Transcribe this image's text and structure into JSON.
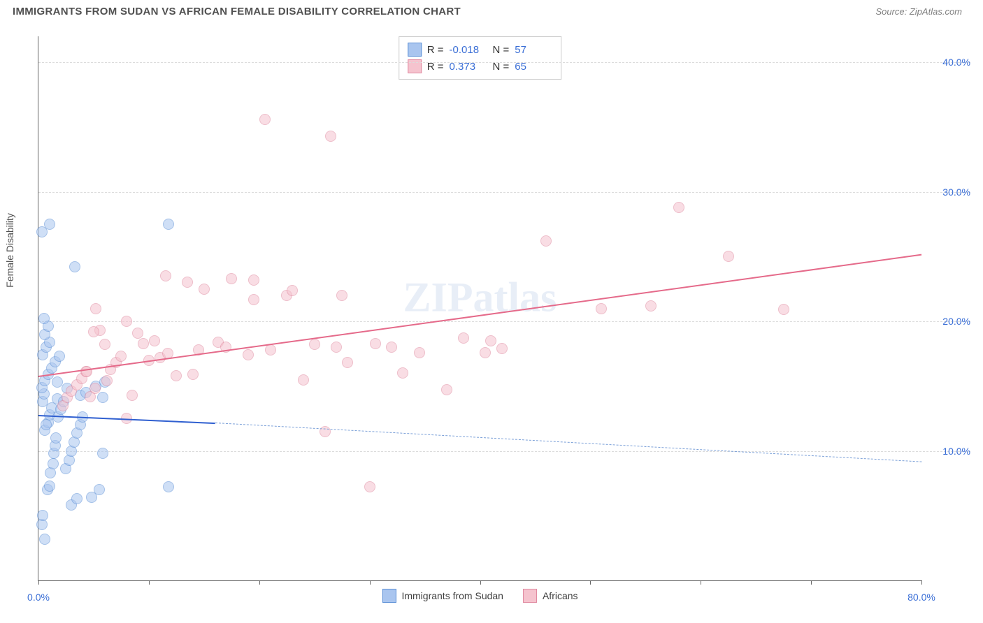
{
  "title": "IMMIGRANTS FROM SUDAN VS AFRICAN FEMALE DISABILITY CORRELATION CHART",
  "source_label": "Source: ZipAtlas.com",
  "ylabel": "Female Disability",
  "watermark": "ZIPatlas",
  "chart": {
    "type": "scatter",
    "xlim": [
      0,
      80
    ],
    "ylim": [
      0,
      42
    ],
    "xtick_positions": [
      0,
      10,
      20,
      30,
      40,
      50,
      60,
      70,
      80
    ],
    "ytick_positions": [
      10,
      20,
      30,
      40
    ],
    "x_axis_labels": [
      {
        "pos": 0,
        "text": "0.0%"
      },
      {
        "pos": 80,
        "text": "80.0%"
      }
    ],
    "y_axis_labels": [
      {
        "pos": 10,
        "text": "10.0%"
      },
      {
        "pos": 20,
        "text": "20.0%"
      },
      {
        "pos": 30,
        "text": "30.0%"
      },
      {
        "pos": 40,
        "text": "40.0%"
      }
    ],
    "background_color": "#ffffff",
    "grid_color": "#dcdcdc",
    "point_radius": 8,
    "point_opacity": 0.55,
    "series": [
      {
        "name": "Immigrants from Sudan",
        "fill": "#a9c5ef",
        "stroke": "#5b8fd6",
        "R": "-0.018",
        "N": "57",
        "trend": {
          "x1": 0,
          "y1": 12.8,
          "x2": 16,
          "y2": 12.2,
          "stroke": "#2f5fd0",
          "width": 2.5,
          "dash": "none"
        },
        "trend_ext": {
          "x1": 16,
          "y1": 12.2,
          "x2": 80,
          "y2": 9.2,
          "stroke": "#7ba0d8",
          "width": 1.5,
          "dash": "5,5"
        },
        "points": [
          [
            0.3,
            4.3
          ],
          [
            0.4,
            5.0
          ],
          [
            0.6,
            3.2
          ],
          [
            0.8,
            7.0
          ],
          [
            1.0,
            7.3
          ],
          [
            1.1,
            8.3
          ],
          [
            1.3,
            9.0
          ],
          [
            1.4,
            9.8
          ],
          [
            1.5,
            10.4
          ],
          [
            1.6,
            11.0
          ],
          [
            0.6,
            11.6
          ],
          [
            0.9,
            12.2
          ],
          [
            1.0,
            12.8
          ],
          [
            1.2,
            13.3
          ],
          [
            0.4,
            13.8
          ],
          [
            0.5,
            14.4
          ],
          [
            1.7,
            14.0
          ],
          [
            0.3,
            14.9
          ],
          [
            0.6,
            15.4
          ],
          [
            0.9,
            15.9
          ],
          [
            1.2,
            16.4
          ],
          [
            1.5,
            16.9
          ],
          [
            0.4,
            17.4
          ],
          [
            0.7,
            18.0
          ],
          [
            1.0,
            18.4
          ],
          [
            0.6,
            19.0
          ],
          [
            0.9,
            19.6
          ],
          [
            0.5,
            20.2
          ],
          [
            0.7,
            12.0
          ],
          [
            1.8,
            12.6
          ],
          [
            2.0,
            13.2
          ],
          [
            2.3,
            13.8
          ],
          [
            2.5,
            8.6
          ],
          [
            2.8,
            9.3
          ],
          [
            3.0,
            10.0
          ],
          [
            3.2,
            10.7
          ],
          [
            3.5,
            11.4
          ],
          [
            3.8,
            12.0
          ],
          [
            4.0,
            12.6
          ],
          [
            1.9,
            17.3
          ],
          [
            1.0,
            27.5
          ],
          [
            3.3,
            24.2
          ],
          [
            3.8,
            14.3
          ],
          [
            4.3,
            14.5
          ],
          [
            4.8,
            6.4
          ],
          [
            5.2,
            15.0
          ],
          [
            5.5,
            7.0
          ],
          [
            5.8,
            9.8
          ],
          [
            6.0,
            15.3
          ],
          [
            3.0,
            5.8
          ],
          [
            3.5,
            6.3
          ],
          [
            0.3,
            26.9
          ],
          [
            11.8,
            27.5
          ],
          [
            11.8,
            7.2
          ],
          [
            5.8,
            14.1
          ],
          [
            2.6,
            14.8
          ],
          [
            1.7,
            15.3
          ]
        ]
      },
      {
        "name": "Africans",
        "fill": "#f5c3ce",
        "stroke": "#e089a0",
        "R": "0.373",
        "N": "65",
        "trend": {
          "x1": 0,
          "y1": 15.8,
          "x2": 80,
          "y2": 25.2,
          "stroke": "#e56a8a",
          "width": 2.2,
          "dash": "none"
        },
        "points": [
          [
            2.2,
            13.5
          ],
          [
            2.6,
            14.1
          ],
          [
            3.0,
            14.6
          ],
          [
            3.5,
            15.1
          ],
          [
            3.9,
            15.6
          ],
          [
            4.3,
            16.1
          ],
          [
            4.7,
            14.2
          ],
          [
            5.1,
            14.8
          ],
          [
            5.6,
            19.3
          ],
          [
            5.0,
            19.2
          ],
          [
            6.0,
            18.2
          ],
          [
            6.5,
            16.3
          ],
          [
            7.0,
            16.8
          ],
          [
            7.5,
            17.3
          ],
          [
            8.0,
            20.0
          ],
          [
            8.5,
            14.3
          ],
          [
            8.0,
            12.5
          ],
          [
            9.0,
            19.1
          ],
          [
            9.5,
            18.3
          ],
          [
            10.0,
            17.0
          ],
          [
            10.5,
            18.5
          ],
          [
            11.0,
            17.2
          ],
          [
            11.5,
            23.5
          ],
          [
            13.5,
            23.0
          ],
          [
            11.7,
            17.5
          ],
          [
            14.0,
            15.9
          ],
          [
            14.5,
            17.8
          ],
          [
            15.0,
            22.5
          ],
          [
            16.3,
            18.4
          ],
          [
            17.5,
            23.3
          ],
          [
            17.0,
            18.0
          ],
          [
            19.0,
            17.4
          ],
          [
            19.5,
            23.2
          ],
          [
            19.5,
            21.7
          ],
          [
            20.5,
            35.6
          ],
          [
            21.0,
            17.8
          ],
          [
            22.5,
            22.0
          ],
          [
            23.0,
            22.4
          ],
          [
            24.0,
            15.5
          ],
          [
            25.0,
            18.2
          ],
          [
            26.0,
            11.5
          ],
          [
            26.5,
            34.3
          ],
          [
            27.0,
            18.0
          ],
          [
            28.0,
            16.8
          ],
          [
            27.5,
            22.0
          ],
          [
            30.5,
            18.3
          ],
          [
            32.0,
            18.0
          ],
          [
            30.0,
            7.2
          ],
          [
            33.0,
            16.0
          ],
          [
            34.5,
            17.6
          ],
          [
            37.0,
            14.7
          ],
          [
            38.5,
            18.7
          ],
          [
            40.5,
            17.6
          ],
          [
            41.0,
            18.5
          ],
          [
            42.0,
            17.9
          ],
          [
            46.0,
            26.2
          ],
          [
            51.0,
            21.0
          ],
          [
            55.5,
            21.2
          ],
          [
            58.0,
            28.8
          ],
          [
            62.5,
            25.0
          ],
          [
            67.5,
            20.9
          ],
          [
            6.2,
            15.4
          ],
          [
            12.5,
            15.8
          ],
          [
            5.2,
            21.0
          ],
          [
            4.4,
            16.1
          ]
        ]
      }
    ]
  }
}
